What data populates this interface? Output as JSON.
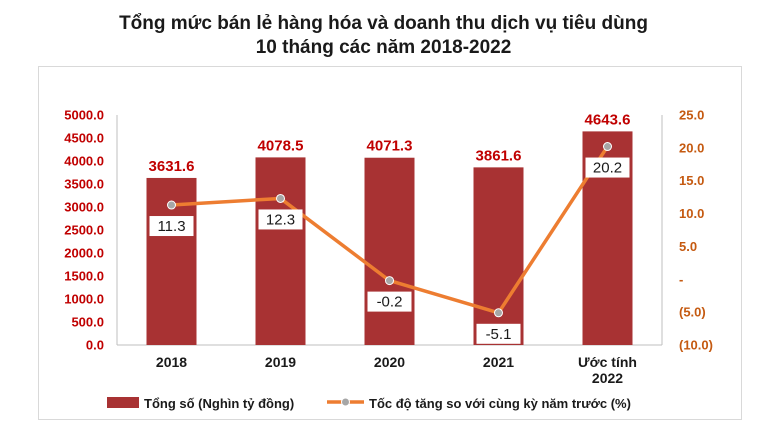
{
  "title_line1": "Tổng mức bán lẻ hàng hóa và doanh thu dịch vụ tiêu dùng",
  "title_line2": "10 tháng các năm 2018-2022",
  "colors": {
    "bar": "#a83233",
    "line": "#ed7d31",
    "marker": "#a6a6a6",
    "left_axis_text": "#c00000",
    "right_axis_text": "#c55a11"
  },
  "chart_data": {
    "type": "bar",
    "categories": [
      [
        "2018"
      ],
      [
        "2019"
      ],
      [
        "2020"
      ],
      [
        "2021"
      ],
      [
        "Ước tính",
        "2022"
      ]
    ],
    "series": [
      {
        "name": "Tổng số (Nghìn tỷ đồng)",
        "type": "bar",
        "axis": "left",
        "values": [
          3631.6,
          4078.5,
          4071.3,
          3861.6,
          4643.6
        ],
        "labels": [
          "3631.6",
          "4078.5",
          "4071.3",
          "3861.6",
          "4643.6"
        ]
      },
      {
        "name": "Tốc độ tăng so với cùng kỳ năm trước (%)",
        "type": "line",
        "axis": "right",
        "values": [
          11.3,
          12.3,
          -0.2,
          -5.1,
          20.2
        ],
        "labels": [
          "11.3",
          "12.3",
          "-0.2",
          "-5.1",
          "20.2"
        ]
      }
    ],
    "left_axis": {
      "ylim": [
        0,
        5000
      ],
      "ticks": [
        0,
        500,
        1000,
        1500,
        2000,
        2500,
        3000,
        3500,
        4000,
        4500,
        5000
      ],
      "tick_labels": [
        "0.0",
        "500.0",
        "1000.0",
        "1500.0",
        "2000.0",
        "2500.0",
        "3000.0",
        "3500.0",
        "4000.0",
        "4500.0",
        "5000.0"
      ]
    },
    "right_axis": {
      "ylim": [
        -10,
        25
      ],
      "ticks": [
        25,
        20,
        15,
        10,
        5,
        0,
        -5,
        -10
      ],
      "tick_labels": [
        "25.0",
        "20.0",
        "15.0",
        "10.0",
        "5.0",
        "-",
        "(5.0)",
        "(10.0)"
      ]
    },
    "grid": false,
    "legend_position": "bottom"
  }
}
